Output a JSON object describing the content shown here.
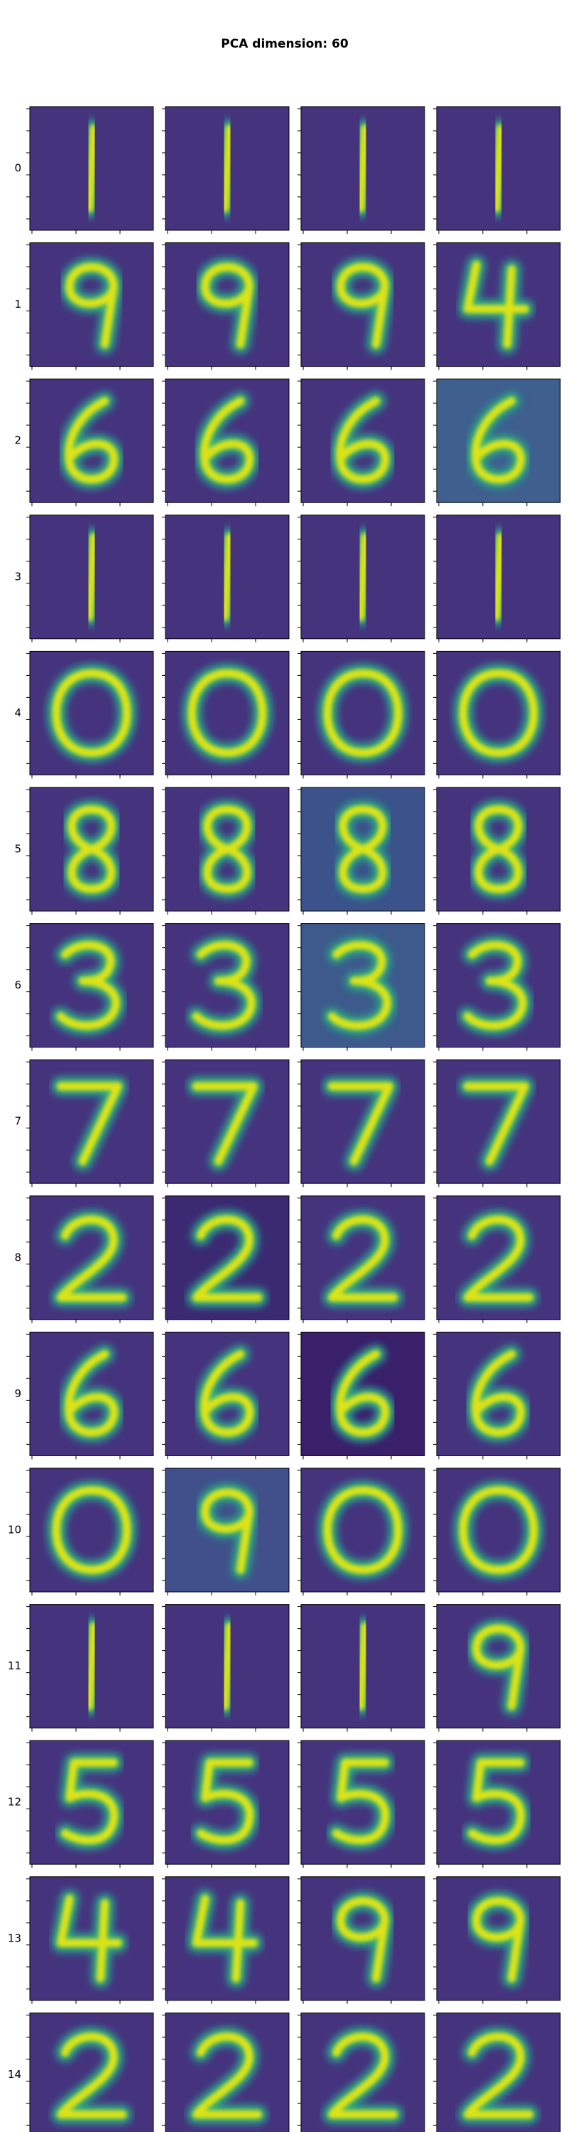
{
  "figure": {
    "title": "PCA dimension: 60",
    "rows": [
      {
        "label": "0"
      },
      {
        "label": "1"
      },
      {
        "label": "2"
      },
      {
        "label": "3"
      },
      {
        "label": "4"
      },
      {
        "label": "5"
      },
      {
        "label": "6"
      },
      {
        "label": "7"
      },
      {
        "label": "8"
      },
      {
        "label": "9"
      },
      {
        "label": "10"
      },
      {
        "label": "11"
      },
      {
        "label": "12"
      },
      {
        "label": "13"
      },
      {
        "label": "14"
      }
    ]
  }
}
